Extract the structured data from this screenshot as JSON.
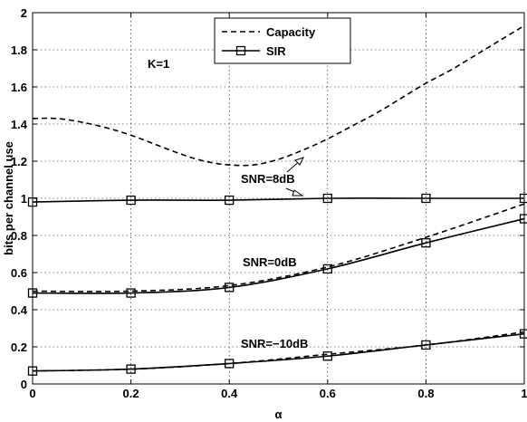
{
  "chart_data": {
    "type": "line",
    "xlabel": "α",
    "ylabel": "bits per channel use",
    "xlim": [
      0,
      1
    ],
    "ylim": [
      0,
      2
    ],
    "xticks": [
      "0",
      "0.2",
      "0.4",
      "0.6",
      "0.8",
      "1"
    ],
    "yticks": [
      "0",
      "0.2",
      "0.4",
      "0.6",
      "0.8",
      "1",
      "1.2",
      "1.4",
      "1.6",
      "1.8",
      "2"
    ],
    "grid": true,
    "legend": {
      "placement": "top-center",
      "entries": [
        {
          "label": "Capacity",
          "style": "dashed"
        },
        {
          "label": "SIR",
          "style": "solid-square-marker"
        }
      ]
    },
    "annotations": [
      "K=1",
      "SNR=8dB",
      "SNR=0dB",
      "SNR=−10dB"
    ],
    "x": [
      0,
      0.2,
      0.4,
      0.6,
      0.8,
      1.0
    ],
    "series": [
      {
        "group": "SNR=8dB",
        "kind": "capacity",
        "x": [
          0,
          0.05,
          0.1,
          0.15,
          0.2,
          0.25,
          0.3,
          0.35,
          0.4,
          0.45,
          0.5,
          0.55,
          0.6,
          0.65,
          0.7,
          0.75,
          0.8,
          0.85,
          0.9,
          0.95,
          1.0
        ],
        "values": [
          1.43,
          1.43,
          1.41,
          1.38,
          1.34,
          1.29,
          1.24,
          1.2,
          1.18,
          1.18,
          1.21,
          1.26,
          1.32,
          1.39,
          1.46,
          1.54,
          1.62,
          1.69,
          1.77,
          1.85,
          1.93
        ]
      },
      {
        "group": "SNR=8dB",
        "kind": "SIR",
        "values": [
          0.98,
          0.99,
          0.99,
          1.0,
          1.0,
          1.0
        ]
      },
      {
        "group": "SNR=0dB",
        "kind": "capacity",
        "values": [
          0.5,
          0.5,
          0.53,
          0.63,
          0.79,
          0.97
        ]
      },
      {
        "group": "SNR=0dB",
        "kind": "SIR",
        "values": [
          0.49,
          0.49,
          0.52,
          0.62,
          0.76,
          0.89
        ]
      },
      {
        "group": "SNR=−10dB",
        "kind": "capacity",
        "values": [
          0.07,
          0.08,
          0.11,
          0.16,
          0.21,
          0.28
        ]
      },
      {
        "group": "SNR=−10dB",
        "kind": "SIR",
        "values": [
          0.07,
          0.08,
          0.11,
          0.15,
          0.21,
          0.27
        ]
      }
    ]
  }
}
